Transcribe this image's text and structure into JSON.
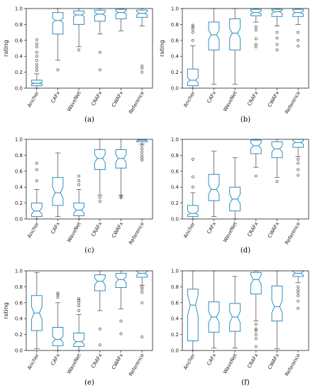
{
  "colors": {
    "box": "#2f8fc0",
    "whisker": "#444444",
    "flier": "#555555",
    "axis": "#222222"
  },
  "chart_data": [
    {
      "type": "box",
      "caption": "(a)",
      "ylabel": "rating",
      "ylim": [
        0,
        1
      ],
      "yticks": [
        "0.0",
        "0.2",
        "0.4",
        "0.6",
        "0.8",
        "1.0"
      ],
      "categories": [
        "Anchor",
        "CAFx",
        "WaveNet",
        "CRAFx",
        "CWAFx",
        "Reference"
      ],
      "boxes": [
        {
          "q1": 0.03,
          "median": 0.06,
          "q3": 0.1,
          "notch_low": 0.05,
          "notch_high": 0.07,
          "whisker_low": 0.0,
          "whisker_high": 0.18,
          "fliers": [
            0.22,
            0.26,
            0.3,
            0.35,
            0.4,
            0.45,
            0.52,
            0.56,
            0.61
          ]
        },
        {
          "q1": 0.68,
          "median": 0.85,
          "q3": 0.95,
          "notch_low": 0.82,
          "notch_high": 0.88,
          "whisker_low": 0.35,
          "whisker_high": 1.0,
          "fliers": [
            0.23
          ]
        },
        {
          "q1": 0.8,
          "median": 0.92,
          "q3": 0.97,
          "notch_low": 0.9,
          "notch_high": 0.94,
          "whisker_low": 0.52,
          "whisker_high": 1.0,
          "fliers": [
            0.48
          ]
        },
        {
          "q1": 0.84,
          "median": 0.93,
          "q3": 0.98,
          "notch_low": 0.91,
          "notch_high": 0.95,
          "whisker_low": 0.68,
          "whisker_high": 1.0,
          "fliers": [
            0.45,
            0.23
          ]
        },
        {
          "q1": 0.87,
          "median": 0.95,
          "q3": 0.99,
          "notch_low": 0.93,
          "notch_high": 0.97,
          "whisker_low": 0.72,
          "whisker_high": 1.0,
          "fliers": []
        },
        {
          "q1": 0.89,
          "median": 0.94,
          "q3": 0.98,
          "notch_low": 0.92,
          "notch_high": 0.96,
          "whisker_low": 0.78,
          "whisker_high": 1.0,
          "fliers": [
            0.28,
            0.25,
            0.2
          ]
        }
      ]
    },
    {
      "type": "box",
      "caption": "(b)",
      "ylabel": "rating",
      "ylim": [
        0,
        1
      ],
      "yticks": [
        "0.0",
        "0.2",
        "0.4",
        "0.6",
        "0.8",
        "1.0"
      ],
      "categories": [
        "Anchor",
        "CAFx",
        "WaveNet",
        "CRAFx",
        "CWAFx",
        "Reference"
      ],
      "boxes": [
        {
          "q1": 0.03,
          "median": 0.1,
          "q3": 0.24,
          "notch_low": 0.07,
          "notch_high": 0.13,
          "whisker_low": 0.0,
          "whisker_high": 0.53,
          "fliers": [
            0.6,
            0.7,
            0.74,
            0.77,
            0.79
          ]
        },
        {
          "q1": 0.48,
          "median": 0.67,
          "q3": 0.83,
          "notch_low": 0.61,
          "notch_high": 0.73,
          "whisker_low": 0.05,
          "whisker_high": 1.0,
          "fliers": []
        },
        {
          "q1": 0.48,
          "median": 0.69,
          "q3": 0.87,
          "notch_low": 0.63,
          "notch_high": 0.75,
          "whisker_low": 0.05,
          "whisker_high": 1.0,
          "fliers": []
        },
        {
          "q1": 0.91,
          "median": 0.95,
          "q3": 0.99,
          "notch_low": 0.93,
          "notch_high": 0.97,
          "whisker_low": 0.83,
          "whisker_high": 1.0,
          "fliers": [
            0.77,
            0.73,
            0.62,
            0.55,
            0.52
          ]
        },
        {
          "q1": 0.9,
          "median": 0.96,
          "q3": 0.99,
          "notch_low": 0.94,
          "notch_high": 0.98,
          "whisker_low": 0.78,
          "whisker_high": 1.0,
          "fliers": [
            0.7,
            0.63,
            0.55,
            0.48
          ]
        },
        {
          "q1": 0.9,
          "median": 0.95,
          "q3": 0.99,
          "notch_low": 0.93,
          "notch_high": 0.97,
          "whisker_low": 0.8,
          "whisker_high": 1.0,
          "fliers": [
            0.7,
            0.6,
            0.53
          ]
        }
      ]
    },
    {
      "type": "box",
      "caption": "(c)",
      "ylabel": "",
      "ylim": [
        0,
        1
      ],
      "yticks": [
        "0.0",
        "0.2",
        "0.4",
        "0.6",
        "0.8",
        "1.0"
      ],
      "categories": [
        "Anchor",
        "CAFx",
        "WaveNet",
        "CRAFx",
        "CWAFx",
        "Reference"
      ],
      "boxes": [
        {
          "q1": 0.03,
          "median": 0.1,
          "q3": 0.2,
          "notch_low": 0.06,
          "notch_high": 0.14,
          "whisker_low": 0.0,
          "whisker_high": 0.37,
          "fliers": [
            0.48,
            0.62,
            0.7
          ]
        },
        {
          "q1": 0.17,
          "median": 0.33,
          "q3": 0.52,
          "notch_low": 0.26,
          "notch_high": 0.4,
          "whisker_low": 0.03,
          "whisker_high": 0.83,
          "fliers": []
        },
        {
          "q1": 0.04,
          "median": 0.11,
          "q3": 0.2,
          "notch_low": 0.07,
          "notch_high": 0.15,
          "whisker_low": 0.0,
          "whisker_high": 0.37,
          "fliers": [
            0.43,
            0.48,
            0.54
          ]
        },
        {
          "q1": 0.62,
          "median": 0.76,
          "q3": 0.87,
          "notch_low": 0.71,
          "notch_high": 0.81,
          "whisker_low": 0.3,
          "whisker_high": 1.0,
          "fliers": [
            0.27,
            0.22
          ]
        },
        {
          "q1": 0.64,
          "median": 0.76,
          "q3": 0.87,
          "notch_low": 0.71,
          "notch_high": 0.81,
          "whisker_low": 0.3,
          "whisker_high": 1.0,
          "fliers": [
            0.28,
            0.27
          ]
        },
        {
          "q1": 0.97,
          "median": 0.99,
          "q3": 1.0,
          "notch_low": 0.98,
          "notch_high": 1.0,
          "whisker_low": 0.94,
          "whisker_high": 1.0,
          "fliers": [
            0.92,
            0.88,
            0.84,
            0.8,
            0.77,
            0.74
          ]
        }
      ]
    },
    {
      "type": "box",
      "caption": "(d)",
      "ylabel": "",
      "ylim": [
        0,
        1
      ],
      "yticks": [
        "0.0",
        "0.2",
        "0.4",
        "0.6",
        "0.8",
        "1.0"
      ],
      "categories": [
        "Anchor",
        "CAFx",
        "WaveNet",
        "CRAFx",
        "CWAFx",
        "Reference"
      ],
      "boxes": [
        {
          "q1": 0.03,
          "median": 0.07,
          "q3": 0.17,
          "notch_low": 0.05,
          "notch_high": 0.1,
          "whisker_low": 0.0,
          "whisker_high": 0.33,
          "fliers": [
            0.4,
            0.53,
            0.75
          ]
        },
        {
          "q1": 0.23,
          "median": 0.37,
          "q3": 0.56,
          "notch_low": 0.31,
          "notch_high": 0.43,
          "whisker_low": 0.03,
          "whisker_high": 0.85,
          "fliers": []
        },
        {
          "q1": 0.1,
          "median": 0.25,
          "q3": 0.4,
          "notch_low": 0.19,
          "notch_high": 0.31,
          "whisker_low": 0.0,
          "whisker_high": 0.77,
          "fliers": []
        },
        {
          "q1": 0.82,
          "median": 0.92,
          "q3": 0.99,
          "notch_low": 0.88,
          "notch_high": 0.96,
          "whisker_low": 0.65,
          "whisker_high": 1.0,
          "fliers": [
            0.54
          ]
        },
        {
          "q1": 0.77,
          "median": 0.88,
          "q3": 0.97,
          "notch_low": 0.84,
          "notch_high": 0.92,
          "whisker_low": 0.52,
          "whisker_high": 1.0,
          "fliers": [
            0.47
          ]
        },
        {
          "q1": 0.9,
          "median": 0.96,
          "q3": 1.0,
          "notch_low": 0.94,
          "notch_high": 0.98,
          "whisker_low": 0.78,
          "whisker_high": 1.0,
          "fliers": [
            0.75,
            0.7,
            0.62,
            0.55
          ]
        }
      ]
    },
    {
      "type": "box",
      "caption": "(e)",
      "ylabel": "rating",
      "ylim": [
        0,
        1
      ],
      "yticks": [
        "0.0",
        "0.2",
        "0.4",
        "0.6",
        "0.8",
        "1.0"
      ],
      "categories": [
        "Anchor",
        "CAFx",
        "WaveNet",
        "CRAFx",
        "CWAFx",
        "Reference"
      ],
      "boxes": [
        {
          "q1": 0.25,
          "median": 0.47,
          "q3": 0.69,
          "notch_low": 0.39,
          "notch_high": 0.55,
          "whisker_low": 0.02,
          "whisker_high": 0.98,
          "fliers": []
        },
        {
          "q1": 0.06,
          "median": 0.14,
          "q3": 0.29,
          "notch_low": 0.1,
          "notch_high": 0.18,
          "whisker_low": 0.0,
          "whisker_high": 0.6,
          "fliers": [
            0.67,
            0.7,
            0.72
          ]
        },
        {
          "q1": 0.05,
          "median": 0.11,
          "q3": 0.22,
          "notch_low": 0.08,
          "notch_high": 0.14,
          "whisker_low": 0.0,
          "whisker_high": 0.45,
          "fliers": [
            0.5,
            0.56,
            0.6,
            0.63,
            0.65
          ]
        },
        {
          "q1": 0.75,
          "median": 0.87,
          "q3": 0.95,
          "notch_low": 0.82,
          "notch_high": 0.91,
          "whisker_low": 0.5,
          "whisker_high": 1.0,
          "fliers": [
            0.27,
            0.07
          ]
        },
        {
          "q1": 0.79,
          "median": 0.89,
          "q3": 0.97,
          "notch_low": 0.85,
          "notch_high": 0.93,
          "whisker_low": 0.52,
          "whisker_high": 1.0,
          "fliers": [
            0.37,
            0.21
          ]
        },
        {
          "q1": 0.92,
          "median": 0.97,
          "q3": 1.0,
          "notch_low": 0.95,
          "notch_high": 0.99,
          "whisker_low": 0.82,
          "whisker_high": 1.0,
          "fliers": [
            0.8,
            0.77,
            0.73,
            0.6,
            0.17
          ]
        }
      ]
    },
    {
      "type": "box",
      "caption": "(f)",
      "ylabel": "",
      "ylim": [
        0,
        1
      ],
      "yticks": [
        "0.0",
        "0.2",
        "0.4",
        "0.6",
        "0.8",
        "1.0"
      ],
      "categories": [
        "Anchor",
        "CAFx",
        "WaveNet",
        "CRAFx",
        "CWAFx",
        "Reference"
      ],
      "boxes": [
        {
          "q1": 0.12,
          "median": 0.57,
          "q3": 0.77,
          "notch_low": 0.44,
          "notch_high": 0.7,
          "whisker_low": 0.0,
          "whisker_high": 1.0,
          "fliers": []
        },
        {
          "q1": 0.23,
          "median": 0.42,
          "q3": 0.61,
          "notch_low": 0.35,
          "notch_high": 0.49,
          "whisker_low": 0.03,
          "whisker_high": 1.0,
          "fliers": []
        },
        {
          "q1": 0.24,
          "median": 0.42,
          "q3": 0.59,
          "notch_low": 0.35,
          "notch_high": 0.49,
          "whisker_low": 0.03,
          "whisker_high": 0.93,
          "fliers": []
        },
        {
          "q1": 0.71,
          "median": 0.89,
          "q3": 0.98,
          "notch_low": 0.83,
          "notch_high": 0.95,
          "whisker_low": 0.37,
          "whisker_high": 1.0,
          "fliers": [
            0.33,
            0.27,
            0.25,
            0.2,
            0.15,
            0.05
          ]
        },
        {
          "q1": 0.37,
          "median": 0.55,
          "q3": 0.81,
          "notch_low": 0.47,
          "notch_high": 0.63,
          "whisker_low": 0.02,
          "whisker_high": 1.0,
          "fliers": []
        },
        {
          "q1": 0.93,
          "median": 0.97,
          "q3": 1.0,
          "notch_low": 0.95,
          "notch_high": 0.99,
          "whisker_low": 0.85,
          "whisker_high": 1.0,
          "fliers": [
            0.8,
            0.76,
            0.73,
            0.69,
            0.62,
            0.53
          ]
        }
      ]
    }
  ]
}
